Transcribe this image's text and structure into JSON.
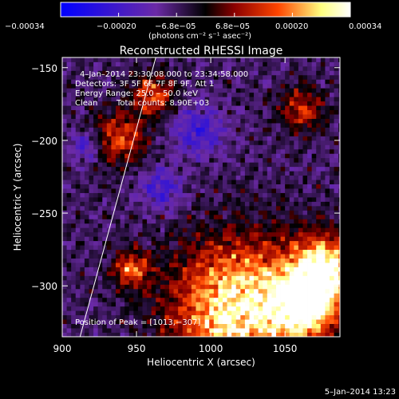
{
  "chart_data": {
    "type": "heatmap",
    "title": "Reconstructed RHESSI Image",
    "xlabel": "Heliocentric X (arcsec)",
    "ylabel": "Heliocentric Y (arcsec)",
    "xlim": [
      900,
      1087
    ],
    "ylim": [
      -335,
      -143
    ],
    "x_ticks": [
      900,
      950,
      1000,
      1050
    ],
    "y_ticks": [
      -300,
      -250,
      -200,
      -150
    ],
    "x_tick_labels": [
      "900",
      "950",
      "1000",
      "1050"
    ],
    "y_tick_labels": [
      "−300",
      "−250",
      "−200",
      "−150"
    ],
    "colorbar": {
      "range": [
        -0.00034,
        0.00034
      ],
      "tick_labels": [
        "−0.00034",
        "−0.00020",
        "−6.8e−05",
        "6.8e−05",
        "0.00020",
        "0.00034"
      ],
      "units_label": "(photons cm⁻² s⁻¹ asec⁻²)",
      "colormap": [
        "#0000ff",
        "#6b2aa6",
        "#000000",
        "#8b0000",
        "#ff4500",
        "#ffff80",
        "#ffffff"
      ]
    },
    "annotations": [
      "4–Jan–2014 23:30:08.000 to 23:34:58.000",
      "Detectors: 3F 5F 6F 7F 8F 9F, Att 1",
      "Energy Range: 25.0 – 50.0 keV",
      "Clean",
      "Total counts: 8.90E+03",
      "Position of Peak = [1013,−307]"
    ],
    "limb_line": {
      "x": [
        912,
        963
      ],
      "y": [
        -335,
        -143
      ],
      "color": "#ffffff"
    },
    "hot_regions": [
      {
        "x": 1020,
        "y": -318,
        "r": 45,
        "peak": 1.0
      },
      {
        "x": 1075,
        "y": -290,
        "r": 22,
        "peak": 0.95
      },
      {
        "x": 1062,
        "y": -315,
        "r": 20,
        "peak": 0.85
      },
      {
        "x": 945,
        "y": -290,
        "r": 12,
        "peak": 0.6
      },
      {
        "x": 937,
        "y": -200,
        "r": 18,
        "peak": 0.5
      },
      {
        "x": 960,
        "y": -170,
        "r": 14,
        "peak": 0.55
      },
      {
        "x": 1060,
        "y": -180,
        "r": 15,
        "peak": 0.45
      }
    ],
    "cool_regions": [
      {
        "x": 915,
        "y": -205,
        "r": 10
      },
      {
        "x": 990,
        "y": -195,
        "r": 18
      },
      {
        "x": 965,
        "y": -235,
        "r": 14
      }
    ]
  },
  "footer": {
    "timestamp": "5–Jan–2014 13:23"
  }
}
